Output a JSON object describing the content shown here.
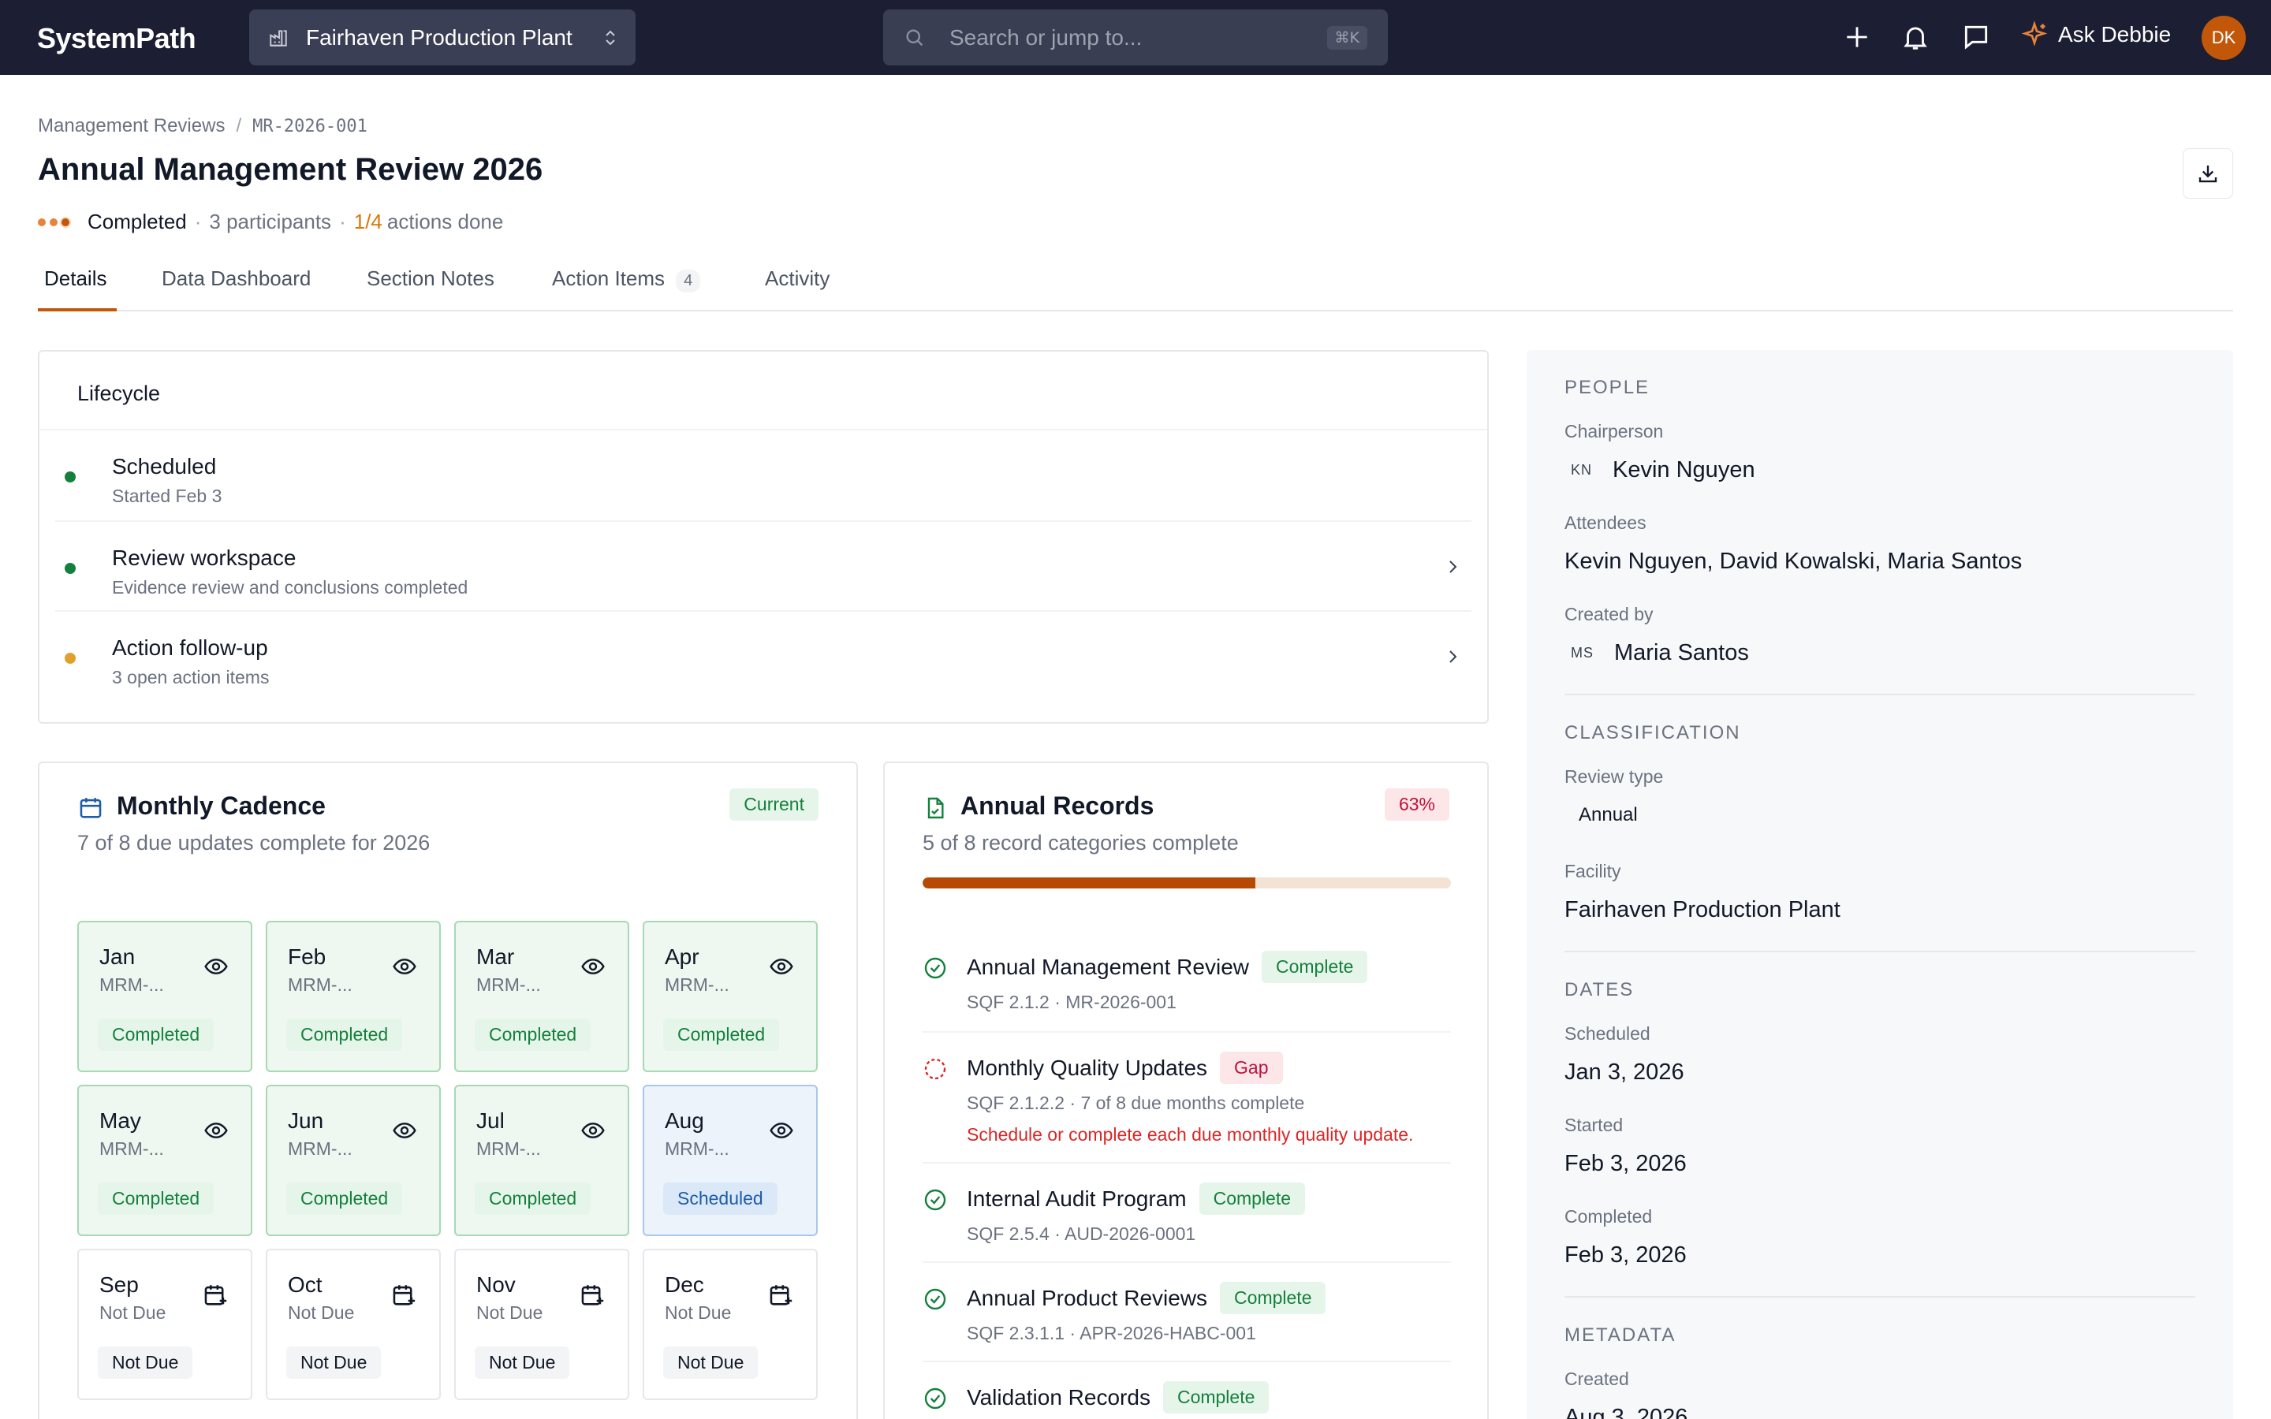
{
  "app": {
    "name": "SystemPath",
    "facility": "Fairhaven Production Plant",
    "search_placeholder": "Search or jump to...",
    "search_shortcut": "⌘K",
    "ask_label": "Ask Debbie",
    "avatar_initials": "DK",
    "accent_color": "#c2570a"
  },
  "breadcrumb": [
    "Management Reviews",
    "MR-2026-001"
  ],
  "page": {
    "title": "Annual Management Review 2026",
    "status": "Completed",
    "participants": "3 participants",
    "actions_fraction": "1/4",
    "actions_suffix": "actions done"
  },
  "tabs": [
    {
      "label": "Details",
      "active": true
    },
    {
      "label": "Data Dashboard"
    },
    {
      "label": "Section Notes"
    },
    {
      "label": "Action Items",
      "count": "4"
    },
    {
      "label": "Activity"
    }
  ],
  "lifecycle": {
    "title": "Lifecycle",
    "steps": [
      {
        "label": "Scheduled",
        "sub": "Started Feb 3",
        "color": "#15803d"
      },
      {
        "label": "Review workspace",
        "sub": "Evidence review and conclusions completed",
        "color": "#15803d"
      },
      {
        "label": "Action follow-up",
        "sub": "3 open action items",
        "color": "#e0a02b"
      }
    ]
  },
  "cadence": {
    "title": "Monthly Cadence",
    "subtitle": "7 of 8 due updates complete for 2026",
    "badge": "Current",
    "months": [
      {
        "name": "Jan",
        "code": "MRM-...",
        "status": "Completed"
      },
      {
        "name": "Feb",
        "code": "MRM-...",
        "status": "Completed"
      },
      {
        "name": "Mar",
        "code": "MRM-...",
        "status": "Completed"
      },
      {
        "name": "Apr",
        "code": "MRM-...",
        "status": "Completed"
      },
      {
        "name": "May",
        "code": "MRM-...",
        "status": "Completed"
      },
      {
        "name": "Jun",
        "code": "MRM-...",
        "status": "Completed"
      },
      {
        "name": "Jul",
        "code": "MRM-...",
        "status": "Completed"
      },
      {
        "name": "Aug",
        "code": "MRM-...",
        "status": "Scheduled"
      },
      {
        "name": "Sep",
        "code": "Not Due",
        "status": "Not Due"
      },
      {
        "name": "Oct",
        "code": "Not Due",
        "status": "Not Due"
      },
      {
        "name": "Nov",
        "code": "Not Due",
        "status": "Not Due"
      },
      {
        "name": "Dec",
        "code": "Not Due",
        "status": "Not Due"
      }
    ]
  },
  "records": {
    "title": "Annual Records",
    "subtitle": "5 of 8 record categories complete",
    "percent": "63%",
    "progress": 0.63,
    "items": [
      {
        "title": "Annual Management Review",
        "badge": "Complete",
        "sub": "SQF 2.1.2 · MR-2026-001",
        "state": "complete"
      },
      {
        "title": "Monthly Quality Updates",
        "badge": "Gap",
        "sub": "SQF 2.1.2.2 · 7 of 8 due months complete",
        "warn": "Schedule or complete each due monthly quality update.",
        "state": "gap"
      },
      {
        "title": "Internal Audit Program",
        "badge": "Complete",
        "sub": "SQF 2.5.4 · AUD-2026-0001",
        "state": "complete"
      },
      {
        "title": "Annual Product Reviews",
        "badge": "Complete",
        "sub": "SQF 2.3.1.1 · APR-2026-HABC-001",
        "state": "complete"
      },
      {
        "title": "Validation Records",
        "badge": "Complete",
        "state": "complete"
      }
    ]
  },
  "side": {
    "people": {
      "heading": "PEOPLE",
      "chair_label": "Chairperson",
      "chair_initials": "KN",
      "chair_name": "Kevin Nguyen",
      "attendees_label": "Attendees",
      "attendees": "Kevin Nguyen, David Kowalski, Maria Santos",
      "created_label": "Created by",
      "created_initials": "MS",
      "created_name": "Maria Santos"
    },
    "classification": {
      "heading": "CLASSIFICATION",
      "type_label": "Review type",
      "type_value": "Annual",
      "facility_label": "Facility",
      "facility_value": "Fairhaven Production Plant"
    },
    "dates": {
      "heading": "DATES",
      "scheduled_label": "Scheduled",
      "scheduled_value": "Jan 3, 2026",
      "started_label": "Started",
      "started_value": "Feb 3, 2026",
      "completed_label": "Completed",
      "completed_value": "Feb 3, 2026"
    },
    "metadata": {
      "heading": "METADATA",
      "created_label": "Created",
      "created_value": "Aug 3, 2026"
    }
  }
}
